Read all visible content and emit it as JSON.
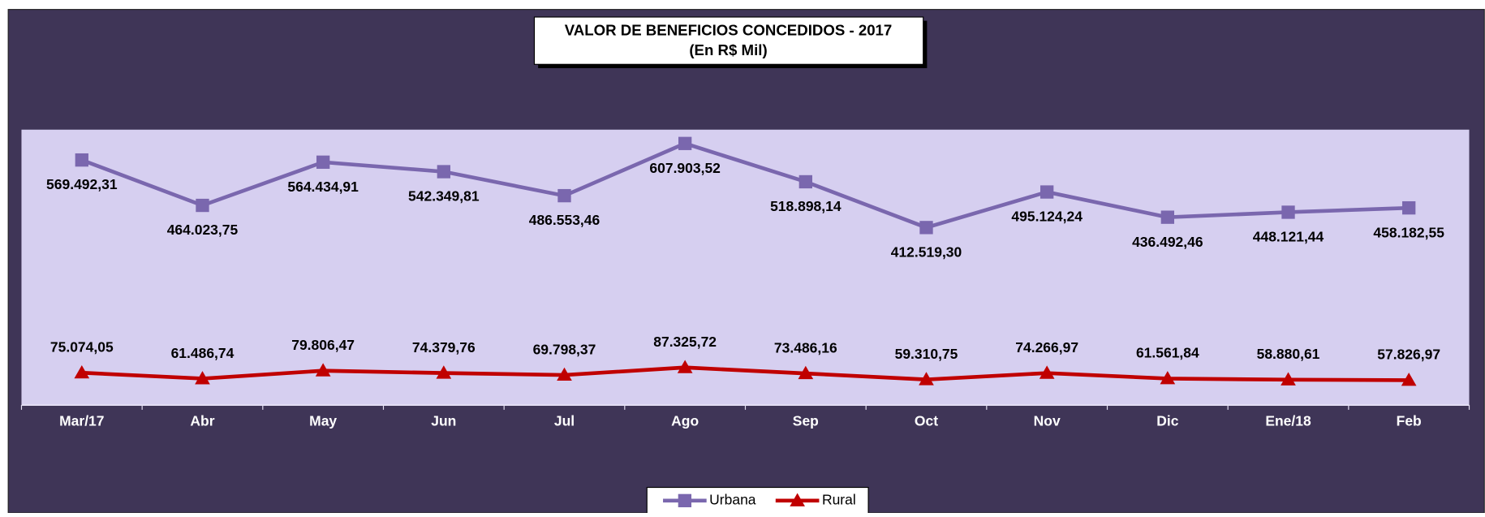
{
  "chart_data": {
    "type": "line",
    "title": "VALOR DE BENEFICIOS CONCEDIDOS - 2017",
    "subtitle": "(En R$ Mil)",
    "categories": [
      "Mar/17",
      "Abr",
      "May",
      "Jun",
      "Jul",
      "Ago",
      "Sep",
      "Oct",
      "Nov",
      "Dic",
      "Ene/18",
      "Feb"
    ],
    "series": [
      {
        "name": "Urbana",
        "color": "#7a67ae",
        "marker": "square",
        "values": [
          569492.31,
          464023.75,
          564434.91,
          542349.81,
          486553.46,
          607903.52,
          518898.14,
          412519.3,
          495124.24,
          436492.46,
          448121.44,
          458182.55
        ],
        "value_labels": [
          "569.492,31",
          "464.023,75",
          "564.434,91",
          "542.349,81",
          "486.553,46",
          "607.903,52",
          "518.898,14",
          "412.519,30",
          "495.124,24",
          "436.492,46",
          "448.121,44",
          "458.182,55"
        ]
      },
      {
        "name": "Rural",
        "color": "#c00000",
        "marker": "triangle",
        "values": [
          75074.05,
          61486.74,
          79806.47,
          74379.76,
          69798.37,
          87325.72,
          73486.16,
          59310.75,
          74266.97,
          61561.84,
          58880.61,
          57826.97
        ],
        "value_labels": [
          "75.074,05",
          "61.486,74",
          "79.806,47",
          "74.379,76",
          "69.798,37",
          "87.325,72",
          "73.486,16",
          "59.310,75",
          "74.266,97",
          "61.561,84",
          "58.880,61",
          "57.826,97"
        ]
      }
    ],
    "ylim": [
      0,
      640000
    ],
    "legend": "bottom"
  }
}
